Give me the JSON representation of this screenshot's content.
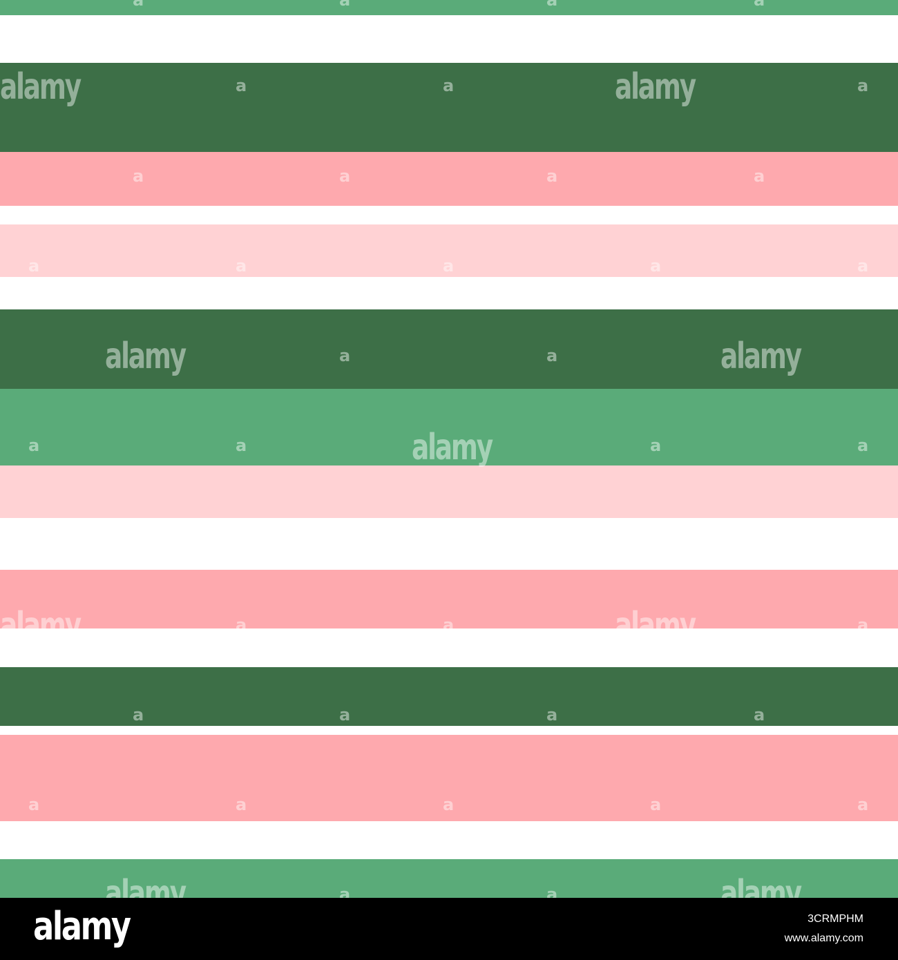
{
  "pattern": {
    "description_colors": {
      "white": "#ffffff",
      "mid_green": "#5aab79",
      "dark_green": "#3d6f47",
      "salmon_pink": "#fea9ae",
      "light_pink": "#ffd2d4"
    },
    "stripes": [
      "mid_green",
      "white",
      "dark_green",
      "salmon_pink",
      "white",
      "light_pink",
      "white",
      "dark_green",
      "mid_green",
      "light_pink",
      "white",
      "salmon_pink",
      "white",
      "dark_green",
      "white",
      "salmon_pink",
      "white",
      "mid_green"
    ]
  },
  "watermark": {
    "word": "alamy",
    "letter": "a"
  },
  "footer": {
    "logo": "alamy",
    "image_id": "3CRMPHM",
    "url": "www.alamy.com"
  }
}
